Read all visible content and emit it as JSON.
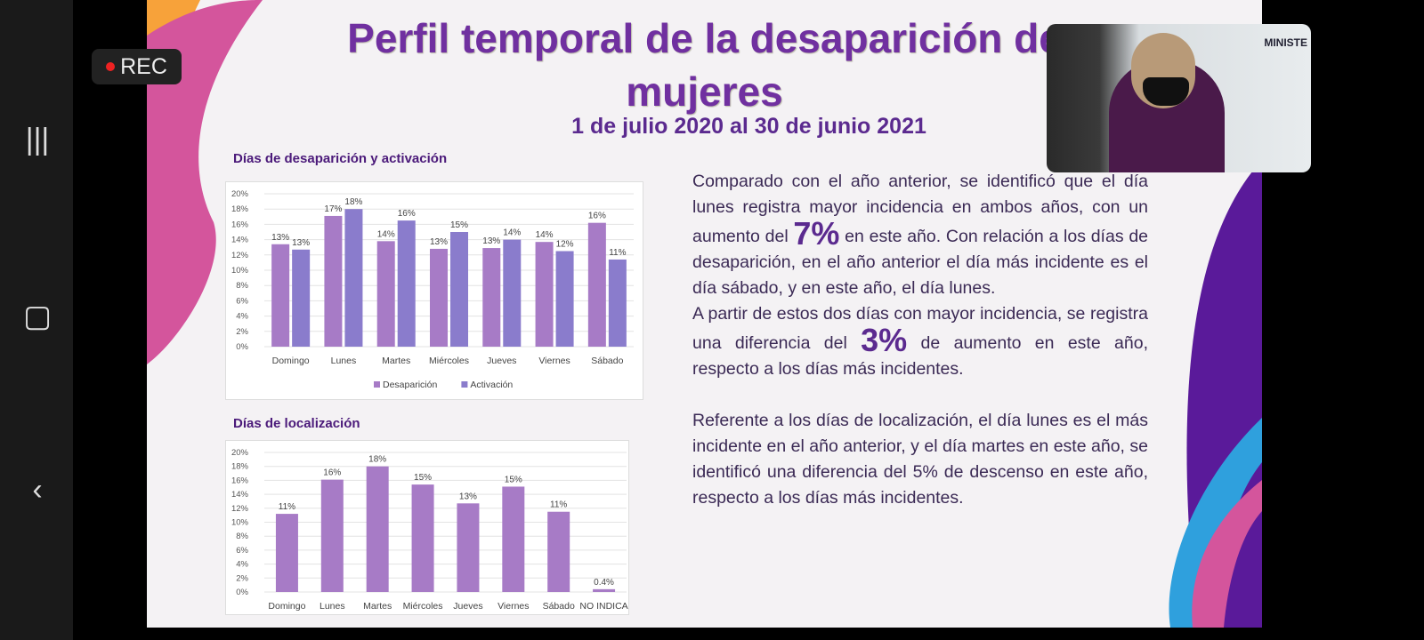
{
  "rec": {
    "label": "REC"
  },
  "slide": {
    "title_line1": "Perfil temporal de la desaparición de",
    "title_line2": "mujeres",
    "subtitle": "1 de julio 2020 al 30 de junio 2021"
  },
  "chart_data": [
    {
      "type": "bar",
      "title": "Días de desaparición y activación",
      "categories": [
        "Domingo",
        "Lunes",
        "Martes",
        "Miércoles",
        "Jueves",
        "Viernes",
        "Sábado"
      ],
      "series": [
        {
          "name": "Desaparición",
          "values": [
            13.4,
            17.1,
            13.8,
            12.8,
            12.9,
            13.7,
            16.2
          ],
          "labels": [
            "13%",
            "17%",
            "14%",
            "13%",
            "13%",
            "14%",
            "16%"
          ],
          "color": "#a77bc6"
        },
        {
          "name": "Activación",
          "values": [
            12.7,
            18.0,
            16.5,
            15.0,
            14.0,
            12.5,
            11.4
          ],
          "labels": [
            "13%",
            "18%",
            "16%",
            "15%",
            "14%",
            "12%",
            "11%"
          ],
          "color": "#8a7ccc"
        }
      ],
      "yticks": [
        "0%",
        "2%",
        "4%",
        "6%",
        "8%",
        "10%",
        "12%",
        "14%",
        "16%",
        "18%",
        "20%"
      ],
      "ylim": [
        0,
        20
      ],
      "grid": true,
      "legend": "bottom"
    },
    {
      "type": "bar",
      "title": "Días de localización",
      "categories": [
        "Domingo",
        "Lunes",
        "Martes",
        "Miércoles",
        "Jueves",
        "Viernes",
        "Sábado",
        "NO INDICA"
      ],
      "series": [
        {
          "values": [
            11.2,
            16.1,
            18.0,
            15.4,
            12.7,
            15.1,
            11.5,
            0.4
          ],
          "labels": [
            "11%",
            "16%",
            "18%",
            "15%",
            "13%",
            "15%",
            "11%",
            "0.4%"
          ],
          "color": "#a77bc6"
        }
      ],
      "yticks": [
        "0%",
        "2%",
        "4%",
        "6%",
        "8%",
        "10%",
        "12%",
        "14%",
        "16%",
        "18%",
        "20%"
      ],
      "ylim": [
        0,
        20
      ],
      "grid": true
    }
  ],
  "body": {
    "p1a": "Comparado con el año anterior, se identificó que el día lunes registra mayor incidencia en ambos años, con un aumento del ",
    "p1big": "7%",
    "p1b": "  en este año. Con relación a los días de desaparición, en el año anterior el día más incidente es el día sábado, y en este año, el día lunes.",
    "p2a": "A partir de estos dos días con mayor incidencia, se registra una diferencia del ",
    "p2big": "3%",
    "p2b": "  de aumento en este año, respecto a los días más incidentes.",
    "p3": "Referente a los días de localización, el día lunes es el más incidente en el año anterior, y el día martes en este año, se identificó una diferencia del 5% de descenso en este año, respecto a los días más incidentes."
  },
  "webcam": {
    "sign": "MINISTE"
  }
}
